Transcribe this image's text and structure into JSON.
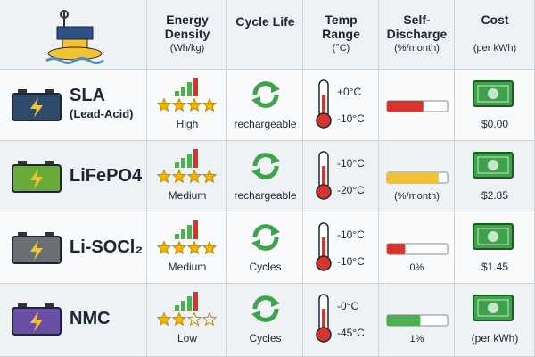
{
  "header": {
    "columns": [
      {
        "title": "Energy Density",
        "unit": "(Wh/kg)"
      },
      {
        "title": "Cycle Life"
      },
      {
        "title": "Temp Range",
        "unit": "(°C)"
      },
      {
        "title": "Self-Discharge",
        "unit": "(%/month)"
      },
      {
        "title": "Cost",
        "unit": "(per kWh)"
      }
    ]
  },
  "rows": [
    {
      "name": "SLA",
      "subname": "(Lead-Acid)",
      "battery_color": "#2f4a6b",
      "stars": 4,
      "density": "High",
      "cycle": "rechargeable",
      "temp_high": "+0°C",
      "temp_low": "-10°C",
      "discharge_fill": 0.6,
      "discharge_color": "#d9342b",
      "cost": "$0.00"
    },
    {
      "name": "LiFePO4",
      "battery_color": "#6aaa3a",
      "stars": 4,
      "density": "Medium",
      "cycle": "rechargeable",
      "temp_high": "-10°C",
      "temp_low": "-20°C",
      "discharge_fill": 0.85,
      "discharge_color": "#f2c230",
      "discharge_label": "(%/month)",
      "cost": "$2.85"
    },
    {
      "name": "Li-SOCl₂",
      "battery_color": "#6b6e72",
      "stars": 4,
      "density": "Medium",
      "cycle": "Cycles",
      "temp_high": "-10°C",
      "temp_low": "-10°C",
      "discharge_fill": 0.3,
      "discharge_color": "#d9342b",
      "discharge_label": "0%",
      "cost": "$1.45"
    },
    {
      "name": "NMC",
      "battery_color": "#6b4fa6",
      "stars": 2,
      "density": "Low",
      "cycle": "Cycles",
      "temp_high": "-0°C",
      "temp_low": "-45°C",
      "discharge_fill": 0.55,
      "discharge_color": "#4caf50",
      "discharge_label": "1%",
      "cost": "(per kWh)"
    }
  ]
}
